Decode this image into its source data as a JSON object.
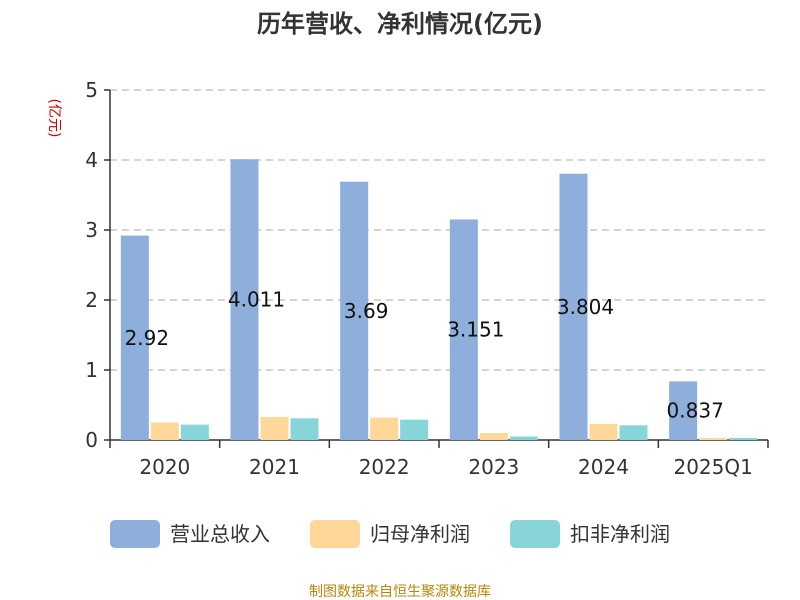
{
  "chart_data": {
    "type": "bar",
    "title": "历年营收、净利情况(亿元)",
    "unit_label": "(亿元)",
    "categories": [
      "2020",
      "2021",
      "2022",
      "2023",
      "2024",
      "2025Q1"
    ],
    "ylim": [
      0,
      5
    ],
    "yticks": [
      "0",
      "1",
      "2",
      "3",
      "4",
      "5"
    ],
    "grid": true,
    "legend_position": "bottom",
    "series": [
      {
        "name": "营业总收入",
        "color": "#8eaedb",
        "values": [
          2.92,
          4.011,
          3.69,
          3.151,
          3.804,
          0.837
        ],
        "labels": [
          "2.92",
          "4.011",
          "3.69",
          "3.151",
          "3.804",
          "0.837"
        ]
      },
      {
        "name": "归母净利润",
        "color": "#ffd899",
        "values": [
          0.25,
          0.33,
          0.32,
          0.1,
          0.23,
          0.03
        ]
      },
      {
        "name": "扣非净利润",
        "color": "#87d5d8",
        "values": [
          0.22,
          0.31,
          0.29,
          0.05,
          0.21,
          0.03
        ]
      }
    ]
  },
  "source_text": "制图数据来自恒生聚源数据库"
}
